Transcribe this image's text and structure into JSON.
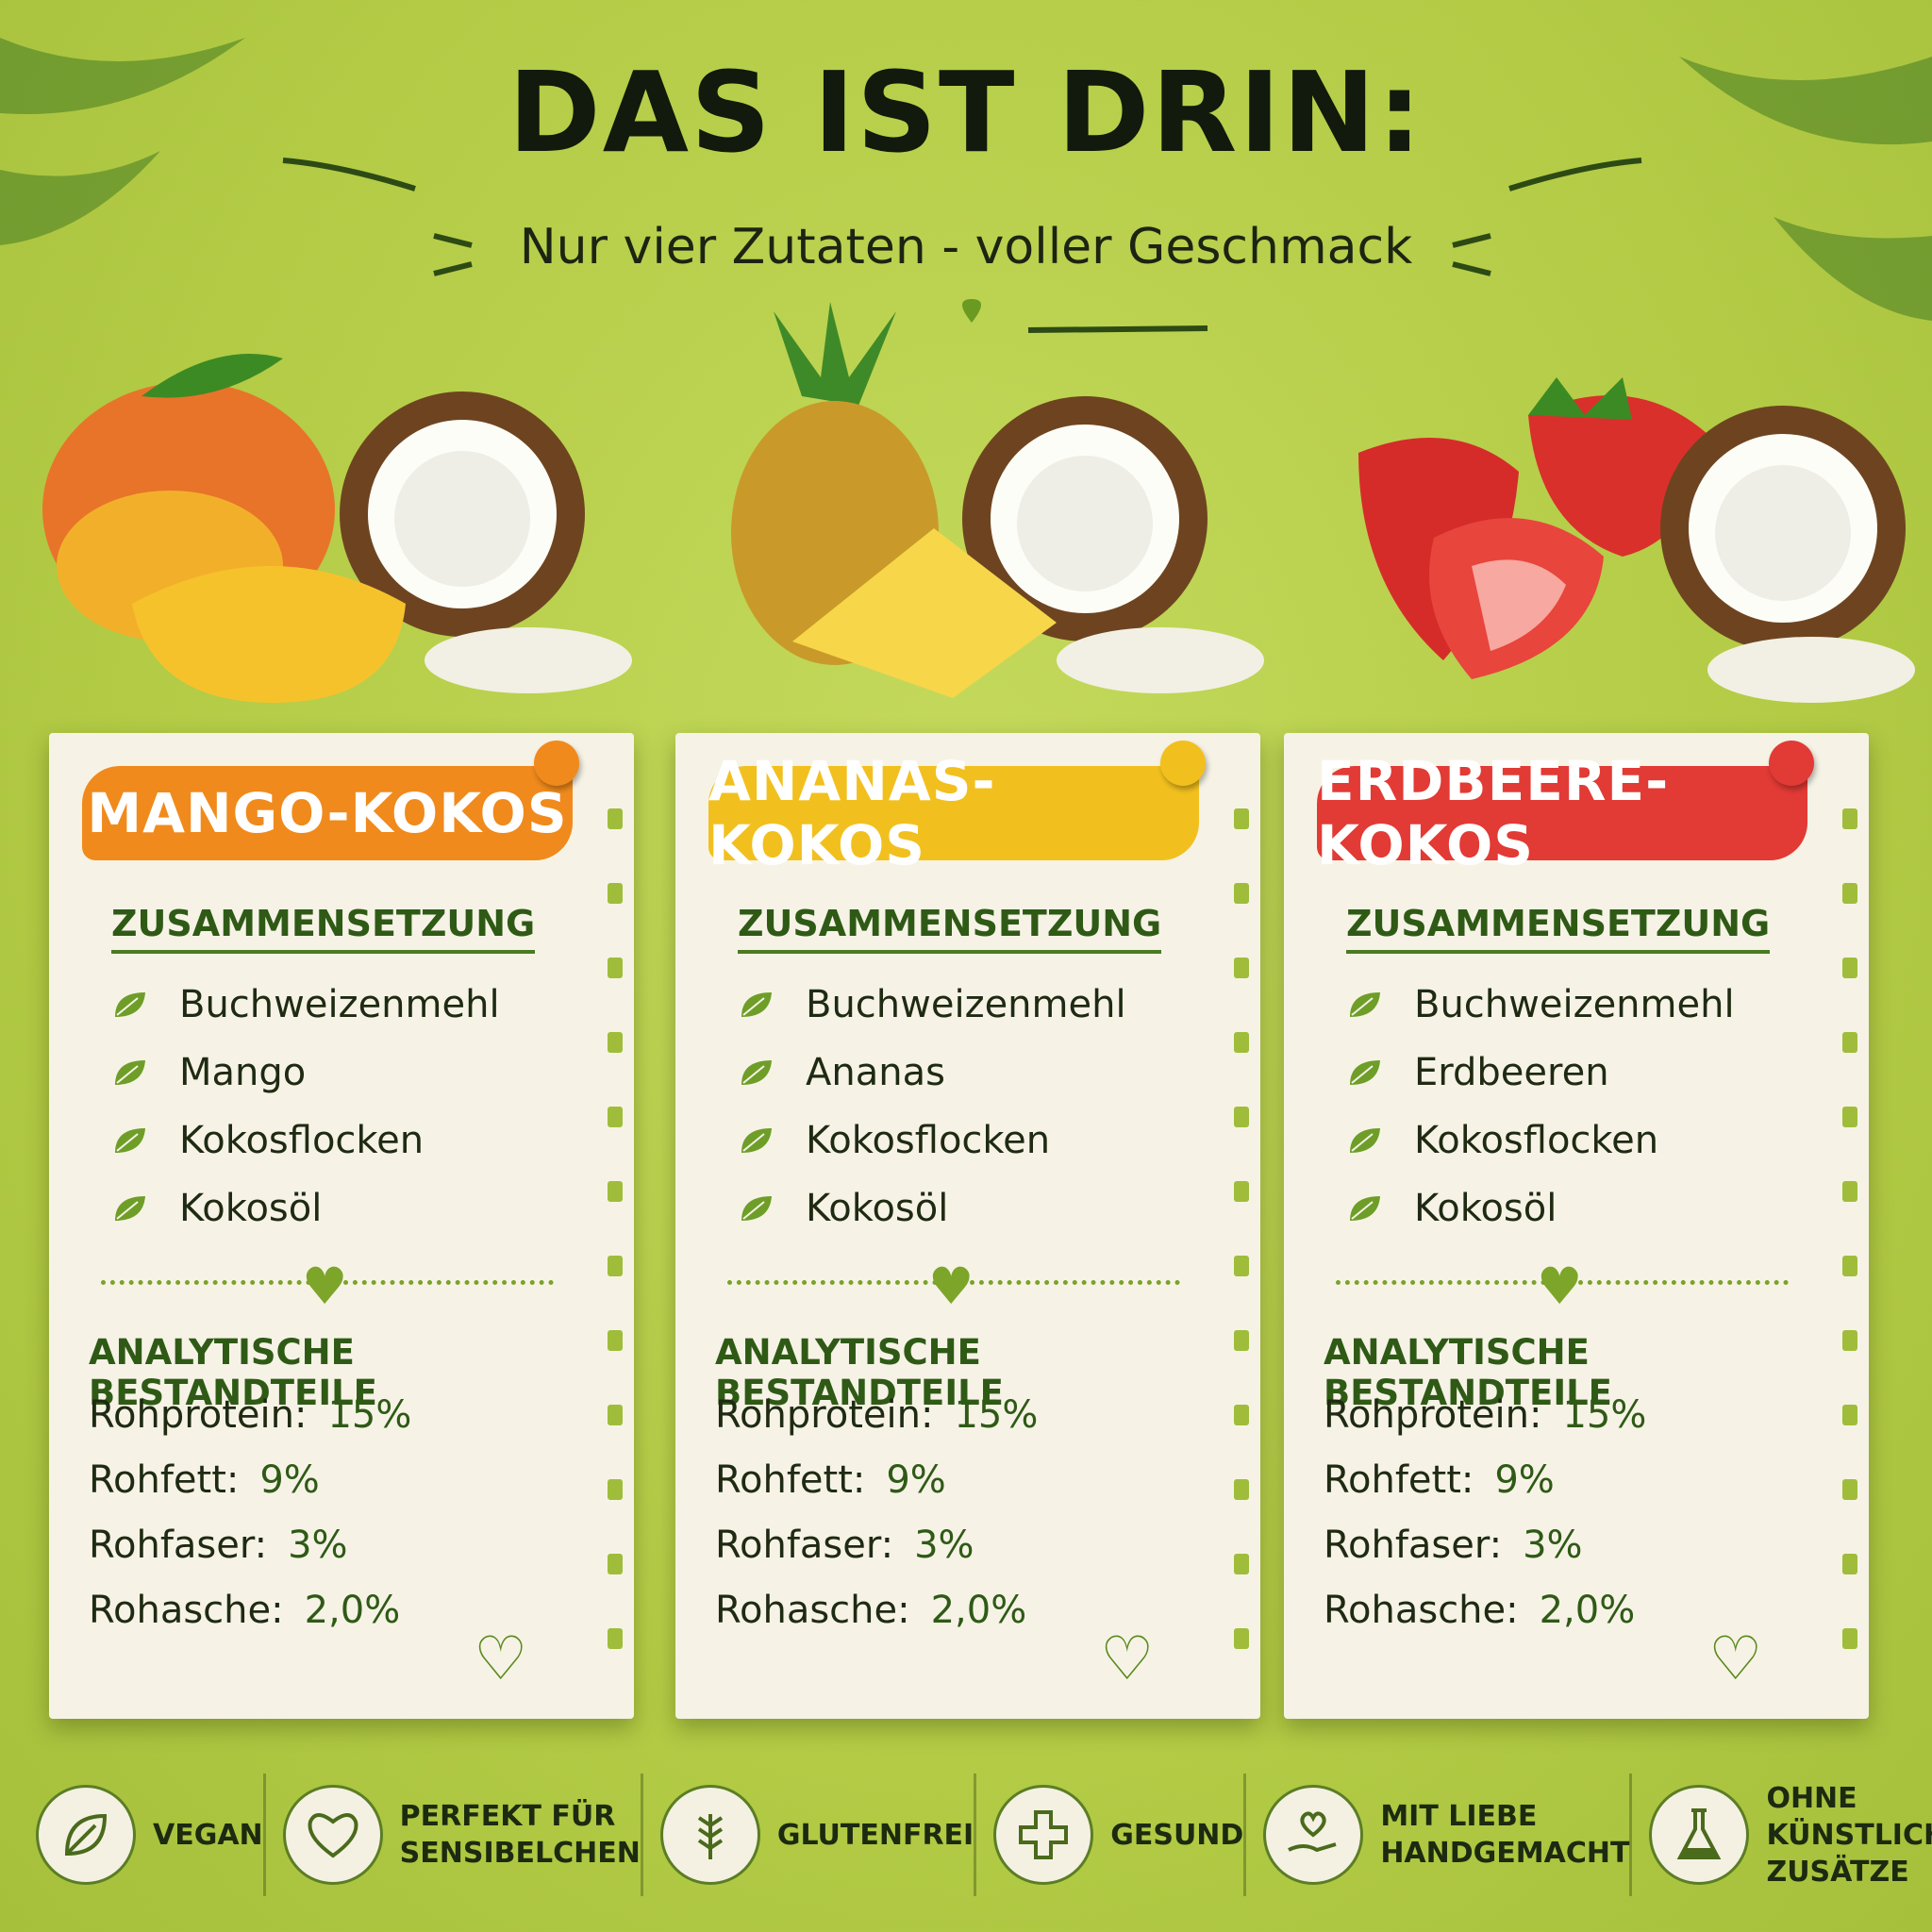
{
  "header": {
    "title": "DAS IST DRIN:",
    "subtitle": "Nur vier Zutaten - voller Geschmack"
  },
  "cards": [
    {
      "title": "MANGO-KOKOS",
      "color": "#f08a1c",
      "composition_heading": "ZUSAMMENSETZUNG",
      "ingredients": [
        "Buchweizenmehl",
        "Mango",
        "Kokosflocken",
        "Kokosöl"
      ],
      "analysis_heading": "ANALYTISCHE BESTANDTEILE",
      "analysis": [
        {
          "label": "Rohprotein:",
          "value": "15%"
        },
        {
          "label": "Rohfett:",
          "value": "9%"
        },
        {
          "label": "Rohfaser:",
          "value": "3%"
        },
        {
          "label": "Rohasche:",
          "value": "2,0%"
        }
      ]
    },
    {
      "title": "ANANAS-KOKOS",
      "color": "#f2c01e",
      "composition_heading": "ZUSAMMENSETZUNG",
      "ingredients": [
        "Buchweizenmehl",
        "Ananas",
        "Kokosflocken",
        "Kokosöl"
      ],
      "analysis_heading": "ANALYTISCHE BESTANDTEILE",
      "analysis": [
        {
          "label": "Rohprotein:",
          "value": "15%"
        },
        {
          "label": "Rohfett:",
          "value": "9%"
        },
        {
          "label": "Rohfaser:",
          "value": "3%"
        },
        {
          "label": "Rohasche:",
          "value": "2,0%"
        }
      ]
    },
    {
      "title": "ERDBEERE-KOKOS",
      "color": "#e23a35",
      "composition_heading": "ZUSAMMENSETZUNG",
      "ingredients": [
        "Buchweizenmehl",
        "Erdbeeren",
        "Kokosflocken",
        "Kokosöl"
      ],
      "analysis_heading": "ANALYTISCHE BESTANDTEILE",
      "analysis": [
        {
          "label": "Rohprotein:",
          "value": "15%"
        },
        {
          "label": "Rohfett:",
          "value": "9%"
        },
        {
          "label": "Rohfaser:",
          "value": "3%"
        },
        {
          "label": "Rohasche:",
          "value": "2,0%"
        }
      ]
    }
  ],
  "badges": [
    {
      "lines": [
        "VEGAN"
      ]
    },
    {
      "lines": [
        "PERFEKT FÜR",
        "SENSIBELCHEN"
      ]
    },
    {
      "lines": [
        "GLUTENFREI"
      ]
    },
    {
      "lines": [
        "GESUND"
      ]
    },
    {
      "lines": [
        "MIT LIEBE",
        "HANDGEMACHT"
      ]
    },
    {
      "lines": [
        "OHNE KÜNSTLICHE",
        "ZUSÄTZE"
      ]
    }
  ]
}
